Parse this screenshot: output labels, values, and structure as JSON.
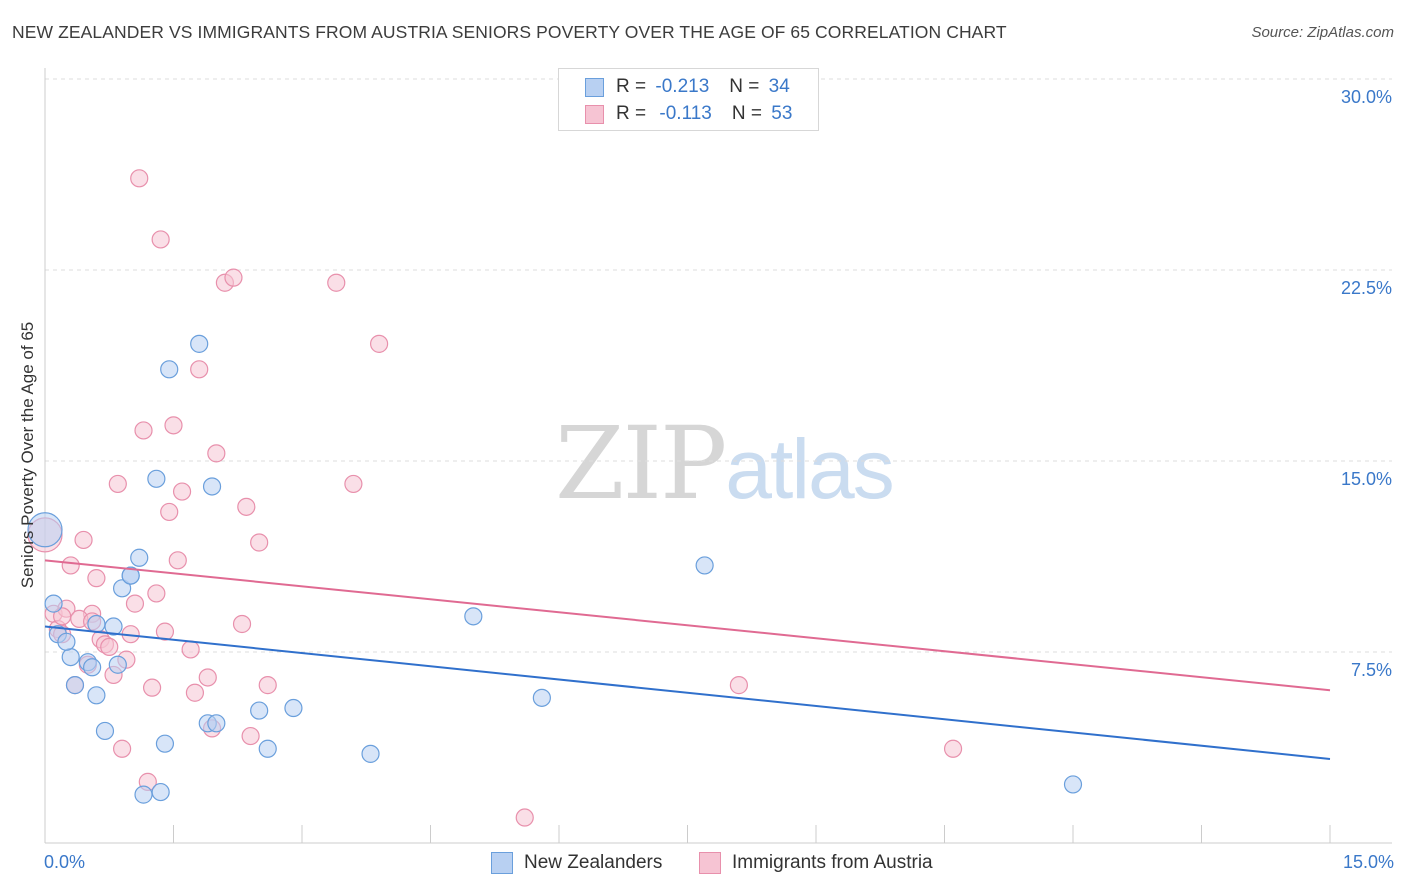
{
  "title": "NEW ZEALANDER VS IMMIGRANTS FROM AUSTRIA SENIORS POVERTY OVER THE AGE OF 65 CORRELATION CHART",
  "source": "Source: ZipAtlas.com",
  "watermark": {
    "zip": "ZIP",
    "atlas": "atlas"
  },
  "legend_top": [
    {
      "r_label": "R =",
      "r_value": "-0.213",
      "n_label": "N =",
      "n_value": "34"
    },
    {
      "r_label": "R =",
      "r_value": "-0.113",
      "n_label": "N =",
      "n_value": "53"
    }
  ],
  "colors": {
    "blue_fill": "#b8d0f2",
    "blue_stroke": "#6a9fdc",
    "blue_line": "#3070cc",
    "pink_fill": "#f6c4d3",
    "pink_stroke": "#e890ac",
    "pink_line": "#e06a92",
    "accent_text": "#3a78c9",
    "grid": "#dddddd"
  },
  "chart_data": {
    "type": "scatter",
    "title": "NEW ZEALANDER VS IMMIGRANTS FROM AUSTRIA SENIORS POVERTY OVER THE AGE OF 65 CORRELATION CHART",
    "xlabel": "",
    "ylabel": "Seniors Poverty Over the Age of 65",
    "xlim": [
      0,
      15
    ],
    "ylim": [
      0,
      30
    ],
    "x_tick_labels": [
      "0.0%",
      "15.0%"
    ],
    "y_tick_values": [
      7.5,
      15.0,
      22.5,
      30.0
    ],
    "y_tick_labels": [
      "7.5%",
      "15.0%",
      "22.5%",
      "30.0%"
    ],
    "grid": "horizontal dashed",
    "legend": "top-center and bottom",
    "series": [
      {
        "name": "New Zealanders",
        "color": "blue",
        "trend": [
          [
            0,
            8.5
          ],
          [
            15,
            3.3
          ]
        ],
        "points": [
          [
            0.0,
            12.3
          ],
          [
            0.1,
            9.4
          ],
          [
            0.15,
            8.2
          ],
          [
            0.3,
            7.3
          ],
          [
            0.35,
            6.2
          ],
          [
            0.25,
            7.9
          ],
          [
            0.5,
            7.1
          ],
          [
            0.6,
            5.8
          ],
          [
            0.7,
            4.4
          ],
          [
            0.55,
            6.9
          ],
          [
            0.8,
            8.5
          ],
          [
            0.85,
            7.0
          ],
          [
            0.9,
            10.0
          ],
          [
            1.0,
            10.5
          ],
          [
            1.1,
            11.2
          ],
          [
            1.15,
            1.9
          ],
          [
            1.3,
            14.3
          ],
          [
            1.35,
            2.0
          ],
          [
            1.4,
            3.9
          ],
          [
            1.45,
            18.6
          ],
          [
            1.8,
            19.6
          ],
          [
            1.9,
            4.7
          ],
          [
            1.95,
            14.0
          ],
          [
            2.0,
            4.7
          ],
          [
            2.5,
            5.2
          ],
          [
            2.6,
            3.7
          ],
          [
            2.9,
            5.3
          ],
          [
            3.8,
            3.5
          ],
          [
            5.0,
            8.9
          ],
          [
            5.8,
            5.7
          ],
          [
            7.7,
            10.9
          ],
          [
            12.0,
            2.3
          ],
          [
            0.6,
            8.6
          ],
          [
            1.0,
            10.5
          ]
        ]
      },
      {
        "name": "Immigrants from Austria",
        "color": "pink",
        "trend": [
          [
            0,
            11.1
          ],
          [
            15,
            6.0
          ]
        ],
        "points": [
          [
            0.0,
            12.1
          ],
          [
            0.1,
            9.0
          ],
          [
            0.15,
            8.4
          ],
          [
            0.2,
            8.2
          ],
          [
            0.25,
            9.2
          ],
          [
            0.3,
            10.9
          ],
          [
            0.35,
            6.2
          ],
          [
            0.45,
            11.9
          ],
          [
            0.5,
            7.0
          ],
          [
            0.55,
            9.0
          ],
          [
            0.6,
            10.4
          ],
          [
            0.65,
            8.0
          ],
          [
            0.7,
            7.8
          ],
          [
            0.75,
            7.7
          ],
          [
            0.8,
            6.6
          ],
          [
            0.85,
            14.1
          ],
          [
            0.9,
            3.7
          ],
          [
            0.95,
            7.2
          ],
          [
            1.0,
            8.2
          ],
          [
            1.05,
            9.4
          ],
          [
            1.1,
            26.1
          ],
          [
            1.15,
            16.2
          ],
          [
            1.2,
            2.4
          ],
          [
            1.25,
            6.1
          ],
          [
            1.3,
            9.8
          ],
          [
            1.35,
            23.7
          ],
          [
            1.4,
            8.3
          ],
          [
            1.45,
            13.0
          ],
          [
            1.5,
            16.4
          ],
          [
            1.55,
            11.1
          ],
          [
            1.6,
            13.8
          ],
          [
            1.7,
            7.6
          ],
          [
            1.75,
            5.9
          ],
          [
            1.8,
            18.6
          ],
          [
            1.9,
            6.5
          ],
          [
            1.95,
            4.5
          ],
          [
            2.0,
            15.3
          ],
          [
            2.1,
            22.0
          ],
          [
            2.2,
            22.2
          ],
          [
            2.3,
            8.6
          ],
          [
            2.35,
            13.2
          ],
          [
            2.4,
            4.2
          ],
          [
            2.5,
            11.8
          ],
          [
            2.6,
            6.2
          ],
          [
            3.4,
            22.0
          ],
          [
            3.6,
            14.1
          ],
          [
            3.9,
            19.6
          ],
          [
            5.6,
            1.0
          ],
          [
            8.1,
            6.2
          ],
          [
            10.6,
            3.7
          ],
          [
            0.4,
            8.8
          ],
          [
            0.55,
            8.7
          ],
          [
            0.2,
            8.9
          ]
        ]
      }
    ]
  }
}
